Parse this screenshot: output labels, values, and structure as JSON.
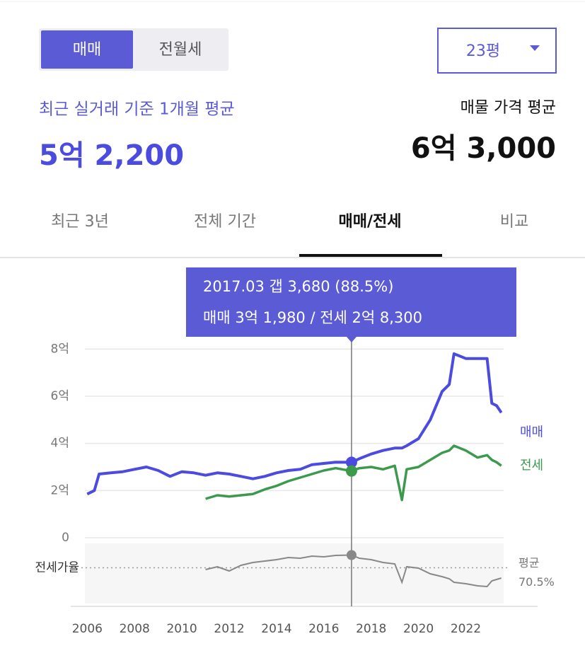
{
  "ui": {
    "toggle": [
      "매매",
      "전월세"
    ],
    "size": "23평",
    "recent_label": "최근 실거래 기준 1개월 평균",
    "recent_price": "5억 2,200",
    "listing_label": "매물 가격 평균",
    "listing_price": "6억 3,000",
    "tabs": [
      "최근 3년",
      "전체 기간",
      "매매/전세",
      "비교"
    ],
    "tooltip": [
      "2017.03  갭 3,680 (88.5%)",
      "매매 3억 1,980 / 전세 2억 8,300"
    ]
  },
  "chart_data": {
    "type": "line",
    "x": [
      2006.0,
      2006.3,
      2006.5,
      2007,
      2007.5,
      2008,
      2008.5,
      2009,
      2009.5,
      2010,
      2010.5,
      2011,
      2011.5,
      2012,
      2012.5,
      2013,
      2013.5,
      2014,
      2014.5,
      2015,
      2015.5,
      2016,
      2016.5,
      2017.17,
      2017.5,
      2018,
      2018.5,
      2019,
      2019.3,
      2019.5,
      2020,
      2020.5,
      2021,
      2021.3,
      2021.5,
      2022,
      2022.5,
      2022.9,
      2023.1,
      2023.3,
      2023.5
    ],
    "xlim": [
      2005.9,
      2023.6
    ],
    "xticks": [
      2006,
      2008,
      2010,
      2012,
      2014,
      2016,
      2018,
      2020,
      2022
    ],
    "ylim": [
      0,
      8.7
    ],
    "yticks": [
      0,
      {
        "value": 2,
        "label": "2억"
      },
      {
        "value": 4,
        "label": "4억"
      },
      {
        "value": 6,
        "label": "6억"
      },
      {
        "value": 8,
        "label": "8억"
      }
    ],
    "grid": true,
    "highlight_index": 23,
    "series": [
      {
        "name": "매매",
        "color": "#4b4be0",
        "values": [
          1.85,
          2.0,
          2.7,
          2.75,
          2.8,
          2.9,
          3.0,
          2.85,
          2.6,
          2.8,
          2.75,
          2.65,
          2.75,
          2.7,
          2.6,
          2.5,
          2.6,
          2.75,
          2.85,
          2.9,
          3.1,
          3.15,
          3.2,
          3.198,
          3.35,
          3.55,
          3.7,
          3.8,
          3.8,
          3.9,
          4.2,
          5.0,
          6.2,
          6.5,
          7.8,
          7.6,
          7.6,
          7.6,
          5.7,
          5.6,
          5.3
        ]
      },
      {
        "name": "전세",
        "color": "#3c9a4c",
        "values": [
          null,
          null,
          null,
          null,
          null,
          null,
          null,
          null,
          null,
          null,
          null,
          1.65,
          1.8,
          1.75,
          1.8,
          1.85,
          2.05,
          2.2,
          2.4,
          2.55,
          2.7,
          2.85,
          2.95,
          2.83,
          2.95,
          3.0,
          2.9,
          3.05,
          1.6,
          2.9,
          3.0,
          3.3,
          3.6,
          3.7,
          3.9,
          3.7,
          3.4,
          3.5,
          3.3,
          3.2,
          3.05
        ]
      }
    ],
    "ratio": {
      "label": "전세가율",
      "color": "#888888",
      "ylim": [
        20,
        105
      ],
      "values": [
        null,
        null,
        null,
        null,
        null,
        null,
        null,
        null,
        null,
        null,
        null,
        68,
        72,
        66,
        74,
        78,
        80,
        82,
        85,
        84,
        87,
        86,
        88,
        88.5,
        84,
        82,
        78,
        76,
        50,
        72,
        70,
        62,
        58,
        55,
        50,
        48,
        45,
        44,
        52,
        54,
        56
      ],
      "average": 70.5,
      "average_label": "평균",
      "average_value_label": "70.5%"
    }
  }
}
